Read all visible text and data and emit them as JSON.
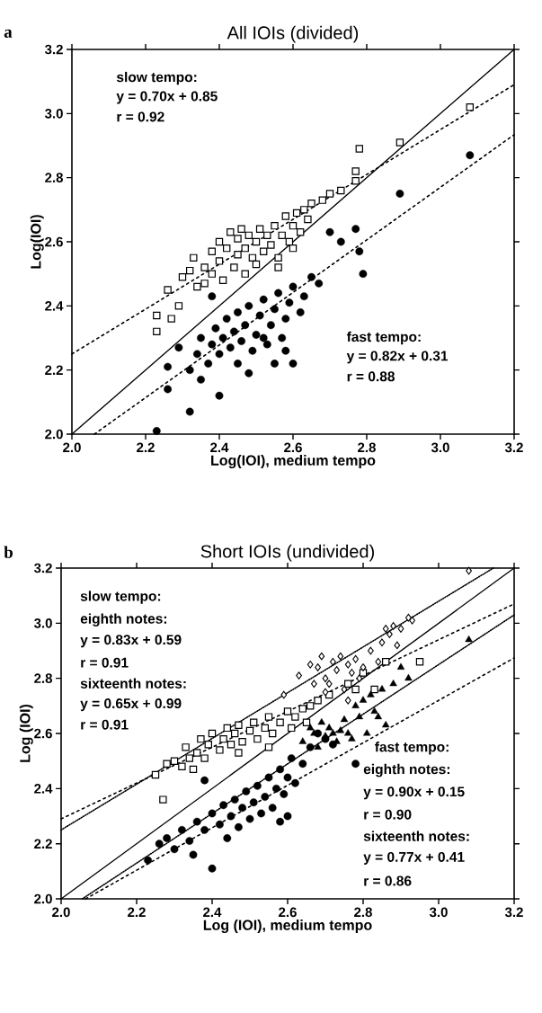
{
  "chart_data": [
    {
      "type": "scatter",
      "title": "All IOIs (divided)",
      "xlabel": "Log(IOI), medium tempo",
      "ylabel": "Log(IOI)",
      "xlim": [
        2.0,
        3.2
      ],
      "ylim": [
        2.0,
        3.2
      ],
      "xticks": [
        {
          "value": 2.0,
          "label": "2.0"
        },
        {
          "value": 2.2,
          "label": "2.2"
        },
        {
          "value": 2.4,
          "label": "2.4"
        },
        {
          "value": 2.6,
          "label": "2.6"
        },
        {
          "value": 2.8,
          "label": "2.8"
        },
        {
          "value": 3.0,
          "label": "3.0"
        },
        {
          "value": 3.2,
          "label": "3.2"
        }
      ],
      "yticks": [
        {
          "value": 2.0,
          "label": "2.0"
        },
        {
          "value": 2.2,
          "label": "2.2"
        },
        {
          "value": 2.4,
          "label": "2.4"
        },
        {
          "value": 2.6,
          "label": "2.6"
        },
        {
          "value": 2.8,
          "label": "2.8"
        },
        {
          "value": 3.0,
          "label": "3.0"
        },
        {
          "value": 3.2,
          "label": "3.2"
        }
      ],
      "grid": false,
      "annotations": [
        "a",
        "slow tempo:",
        "y = 0.70x + 0.85",
        "r = 0.92",
        "fast tempo:",
        "y = 0.82x + 0.31",
        "r = 0.88"
      ],
      "series": [
        {
          "type": "scatter",
          "marker": "square",
          "color": "#000000",
          "x": [
            2.23,
            2.23,
            2.27,
            2.29,
            2.26,
            2.3,
            2.32,
            2.33,
            2.34,
            2.36,
            2.36,
            2.38,
            2.38,
            2.4,
            2.4,
            2.41,
            2.42,
            2.43,
            2.44,
            2.45,
            2.45,
            2.46,
            2.47,
            2.47,
            2.48,
            2.49,
            2.5,
            2.51,
            2.52,
            2.53,
            2.54,
            2.55,
            2.56,
            2.57,
            2.58,
            2.59,
            2.6,
            2.61,
            2.62,
            2.63,
            2.64,
            2.65,
            2.68,
            2.7,
            2.73,
            2.77,
            2.77,
            2.78,
            2.89,
            3.08,
            2.6,
            2.56,
            2.5
          ],
          "values": [
            2.32,
            2.37,
            2.36,
            2.4,
            2.45,
            2.49,
            2.51,
            2.55,
            2.46,
            2.47,
            2.52,
            2.5,
            2.57,
            2.54,
            2.6,
            2.48,
            2.58,
            2.63,
            2.52,
            2.56,
            2.61,
            2.64,
            2.5,
            2.58,
            2.62,
            2.55,
            2.6,
            2.64,
            2.57,
            2.62,
            2.59,
            2.65,
            2.55,
            2.62,
            2.68,
            2.6,
            2.65,
            2.69,
            2.63,
            2.7,
            2.67,
            2.72,
            2.73,
            2.75,
            2.76,
            2.79,
            2.82,
            2.89,
            2.91,
            3.02,
            2.58,
            2.52,
            2.53
          ]
        },
        {
          "type": "scatter",
          "marker": "circle",
          "color": "#000000",
          "x": [
            2.23,
            2.32,
            2.26,
            2.4,
            2.26,
            2.29,
            2.35,
            2.38,
            2.7,
            2.73,
            2.77,
            2.78,
            2.79,
            2.89,
            3.08,
            2.65,
            2.67,
            2.6,
            2.55,
            2.52,
            2.32,
            2.34,
            2.35,
            2.37,
            2.38,
            2.39,
            2.4,
            2.41,
            2.42,
            2.43,
            2.44,
            2.45,
            2.45,
            2.46,
            2.47,
            2.48,
            2.49,
            2.5,
            2.51,
            2.52,
            2.53,
            2.54,
            2.55,
            2.56,
            2.57,
            2.58,
            2.59,
            2.6,
            2.62,
            2.63,
            2.58,
            2.48
          ],
          "values": [
            2.01,
            2.07,
            2.14,
            2.12,
            2.21,
            2.27,
            2.17,
            2.43,
            2.63,
            2.6,
            2.64,
            2.57,
            2.5,
            2.75,
            2.87,
            2.49,
            2.47,
            2.22,
            2.22,
            2.3,
            2.2,
            2.25,
            2.3,
            2.22,
            2.28,
            2.33,
            2.25,
            2.3,
            2.36,
            2.27,
            2.32,
            2.38,
            2.22,
            2.29,
            2.34,
            2.4,
            2.26,
            2.31,
            2.37,
            2.42,
            2.28,
            2.34,
            2.39,
            2.44,
            2.3,
            2.36,
            2.41,
            2.46,
            2.38,
            2.43,
            2.26,
            2.19
          ]
        },
        {
          "type": "line",
          "line_style": "solid",
          "color": "#000000",
          "x": [
            2.0,
            3.2
          ],
          "values": [
            2.0,
            3.2
          ]
        },
        {
          "type": "line",
          "line_style": "dashed",
          "color": "#000000",
          "x": [
            2.0,
            3.2
          ],
          "values": [
            2.25,
            3.09
          ]
        },
        {
          "type": "line",
          "line_style": "dashed",
          "color": "#000000",
          "x": [
            2.061,
            3.2
          ],
          "values": [
            2.0,
            2.934
          ]
        }
      ]
    },
    {
      "type": "scatter",
      "title": "Short IOIs (undivided)",
      "xlabel": "Log (IOI), medium tempo",
      "ylabel": "Log (IOI)",
      "xlim": [
        2.0,
        3.2
      ],
      "ylim": [
        2.0,
        3.2
      ],
      "xticks": [
        {
          "value": 2.0,
          "label": "2.0"
        },
        {
          "value": 2.2,
          "label": "2.2"
        },
        {
          "value": 2.4,
          "label": "2.4"
        },
        {
          "value": 2.6,
          "label": "2.6"
        },
        {
          "value": 2.8,
          "label": "2.8"
        },
        {
          "value": 3.0,
          "label": "3.0"
        },
        {
          "value": 3.2,
          "label": "3.2"
        }
      ],
      "yticks": [
        {
          "value": 2.0,
          "label": "2.0"
        },
        {
          "value": 2.2,
          "label": "2.2"
        },
        {
          "value": 2.4,
          "label": "2.4"
        },
        {
          "value": 2.6,
          "label": "2.6"
        },
        {
          "value": 2.8,
          "label": "2.8"
        },
        {
          "value": 3.0,
          "label": "3.0"
        },
        {
          "value": 3.2,
          "label": "3.2"
        }
      ],
      "grid": false,
      "annotations": [
        "b",
        "slow tempo:",
        "eighth notes:",
        "y = 0.83x + 0.59",
        "r = 0.91",
        "sixteenth notes:",
        "y = 0.65x + 0.99",
        "r = 0.91",
        "fast tempo:",
        "eighth notes:",
        "y = 0.90x + 0.15",
        "r = 0.90",
        "sixteenth notes:",
        "y = 0.77x + 0.41",
        "r = 0.86"
      ],
      "series": [
        {
          "type": "scatter",
          "marker": "square",
          "color": "#000000",
          "x": [
            2.25,
            2.27,
            2.28,
            2.3,
            2.32,
            2.33,
            2.34,
            2.35,
            2.36,
            2.37,
            2.38,
            2.39,
            2.4,
            2.42,
            2.43,
            2.44,
            2.45,
            2.46,
            2.47,
            2.48,
            2.5,
            2.51,
            2.52,
            2.54,
            2.55,
            2.56,
            2.58,
            2.6,
            2.61,
            2.62,
            2.64,
            2.65,
            2.66,
            2.68,
            2.71,
            2.76,
            2.78,
            2.8,
            2.86,
            2.95,
            2.83,
            2.55,
            2.47
          ],
          "values": [
            2.45,
            2.36,
            2.49,
            2.5,
            2.48,
            2.55,
            2.51,
            2.47,
            2.53,
            2.58,
            2.51,
            2.56,
            2.6,
            2.54,
            2.58,
            2.62,
            2.56,
            2.6,
            2.63,
            2.57,
            2.61,
            2.64,
            2.58,
            2.62,
            2.66,
            2.6,
            2.64,
            2.68,
            2.62,
            2.66,
            2.69,
            2.64,
            2.7,
            2.72,
            2.74,
            2.78,
            2.76,
            2.82,
            2.86,
            2.86,
            2.76,
            2.55,
            2.53
          ]
        },
        {
          "type": "scatter",
          "marker": "diamond",
          "color": "#000000",
          "x": [
            2.63,
            2.66,
            2.68,
            2.69,
            2.7,
            2.71,
            2.72,
            2.73,
            2.74,
            2.75,
            2.76,
            2.77,
            2.78,
            2.79,
            2.8,
            2.82,
            2.84,
            2.85,
            2.86,
            2.87,
            2.88,
            2.9,
            2.92,
            2.93,
            2.89,
            2.76,
            2.7,
            2.67,
            2.59,
            3.08
          ],
          "values": [
            2.81,
            2.85,
            2.84,
            2.88,
            2.8,
            2.78,
            2.86,
            2.83,
            2.88,
            2.76,
            2.85,
            2.82,
            2.87,
            2.8,
            2.84,
            2.9,
            2.86,
            2.93,
            2.98,
            2.96,
            2.99,
            2.98,
            3.02,
            3.01,
            2.92,
            2.72,
            2.75,
            2.78,
            2.74,
            3.19
          ]
        },
        {
          "type": "scatter",
          "marker": "circle",
          "color": "#000000",
          "x": [
            2.23,
            2.26,
            2.28,
            2.3,
            2.32,
            2.34,
            2.36,
            2.38,
            2.38,
            2.4,
            2.4,
            2.42,
            2.43,
            2.44,
            2.45,
            2.46,
            2.47,
            2.48,
            2.49,
            2.5,
            2.51,
            2.52,
            2.53,
            2.54,
            2.55,
            2.56,
            2.57,
            2.58,
            2.59,
            2.6,
            2.61,
            2.62,
            2.64,
            2.66,
            2.68,
            2.7,
            2.72,
            2.78,
            2.6,
            2.58,
            2.35
          ],
          "values": [
            2.14,
            2.2,
            2.22,
            2.18,
            2.25,
            2.21,
            2.28,
            2.25,
            2.43,
            2.11,
            2.31,
            2.27,
            2.34,
            2.22,
            2.3,
            2.36,
            2.26,
            2.33,
            2.39,
            2.29,
            2.35,
            2.41,
            2.31,
            2.37,
            2.44,
            2.33,
            2.4,
            2.47,
            2.38,
            2.44,
            2.51,
            2.42,
            2.49,
            2.55,
            2.6,
            2.58,
            2.56,
            2.49,
            2.3,
            2.28,
            2.16
          ]
        },
        {
          "type": "scatter",
          "marker": "triangle",
          "color": "#000000",
          "x": [
            2.64,
            2.66,
            2.67,
            2.68,
            2.69,
            2.7,
            2.71,
            2.72,
            2.73,
            2.74,
            2.75,
            2.76,
            2.78,
            2.79,
            2.8,
            2.82,
            2.83,
            2.85,
            2.86,
            2.88,
            2.9,
            2.92,
            3.08,
            2.77,
            2.84,
            2.81
          ],
          "values": [
            2.57,
            2.62,
            2.6,
            2.55,
            2.64,
            2.59,
            2.62,
            2.6,
            2.57,
            2.61,
            2.65,
            2.6,
            2.7,
            2.66,
            2.72,
            2.74,
            2.68,
            2.76,
            2.63,
            2.78,
            2.84,
            2.8,
            2.94,
            2.58,
            2.66,
            2.6
          ]
        },
        {
          "type": "line",
          "line_style": "solid",
          "color": "#000000",
          "x": [
            2.0,
            3.2
          ],
          "values": [
            2.0,
            3.2
          ]
        },
        {
          "type": "line",
          "line_style": "dotted",
          "color": "#000000",
          "x": [
            2.0,
            3.145
          ],
          "values": [
            2.25,
            3.2
          ]
        },
        {
          "type": "line",
          "line_style": "dashed",
          "color": "#000000",
          "x": [
            2.0,
            3.2
          ],
          "values": [
            2.29,
            3.07
          ]
        },
        {
          "type": "line",
          "line_style": "dotted",
          "color": "#000000",
          "x": [
            2.056,
            3.2
          ],
          "values": [
            2.0,
            3.03
          ]
        },
        {
          "type": "line",
          "line_style": "dashed",
          "color": "#000000",
          "x": [
            2.065,
            3.2
          ],
          "values": [
            2.0,
            2.874
          ]
        }
      ]
    }
  ]
}
